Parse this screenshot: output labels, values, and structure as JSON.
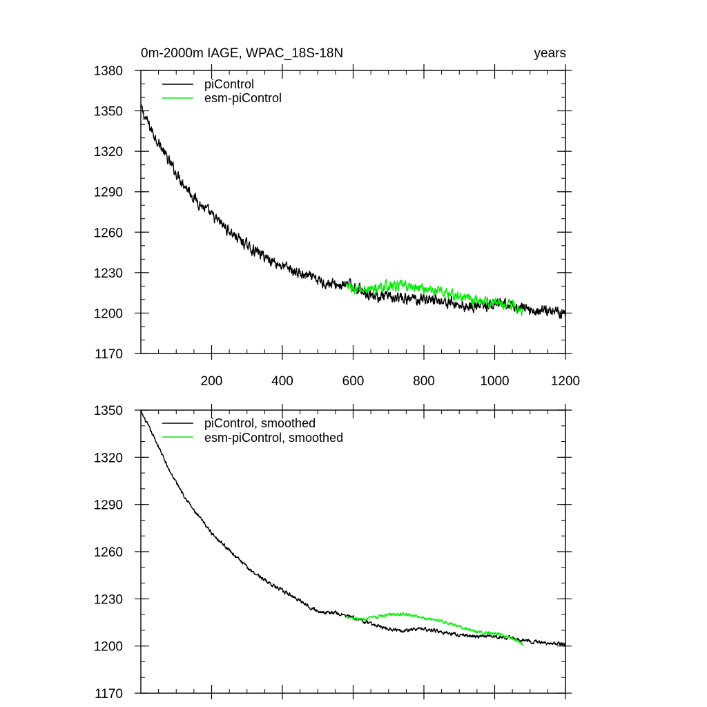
{
  "chart_data": [
    {
      "type": "line",
      "title": "0m-2000m IAGE, WPAC_18S-18N",
      "units_label": "years",
      "xlim": [
        0,
        1200
      ],
      "ylim": [
        1170,
        1380
      ],
      "xticks": [
        200,
        400,
        600,
        800,
        1000,
        1200
      ],
      "yticks": [
        1170,
        1200,
        1230,
        1260,
        1290,
        1320,
        1350,
        1380
      ],
      "x_minor_step": 50,
      "y_minor_step": 10,
      "show_x_labels": true,
      "legend_position": "top-left",
      "series": [
        {
          "name": "piControl",
          "color": "#000000",
          "x_range": [
            0,
            1200
          ],
          "noise": 3.2,
          "anchors": [
            [
              0,
              1352
            ],
            [
              25,
              1338
            ],
            [
              50,
              1327
            ],
            [
              75,
              1314
            ],
            [
              100,
              1304
            ],
            [
              150,
              1286
            ],
            [
              200,
              1272
            ],
            [
              250,
              1261
            ],
            [
              300,
              1250
            ],
            [
              350,
              1242
            ],
            [
              400,
              1235
            ],
            [
              450,
              1229
            ],
            [
              500,
              1224
            ],
            [
              550,
              1221
            ],
            [
              600,
              1220
            ],
            [
              650,
              1214
            ],
            [
              700,
              1211
            ],
            [
              750,
              1210
            ],
            [
              800,
              1211
            ],
            [
              850,
              1209
            ],
            [
              900,
              1206
            ],
            [
              950,
              1205
            ],
            [
              1000,
              1206
            ],
            [
              1050,
              1205
            ],
            [
              1100,
              1202
            ],
            [
              1150,
              1202
            ],
            [
              1200,
              1201
            ]
          ]
        },
        {
          "name": "esm-piControl",
          "color": "#00ee00",
          "x_range": [
            580,
            1080
          ],
          "noise": 3.0,
          "anchors": [
            [
              580,
              1219
            ],
            [
              620,
              1217
            ],
            [
              660,
              1218
            ],
            [
              700,
              1220
            ],
            [
              750,
              1220
            ],
            [
              800,
              1218
            ],
            [
              850,
              1216
            ],
            [
              900,
              1212
            ],
            [
              950,
              1209
            ],
            [
              1000,
              1208
            ],
            [
              1050,
              1206
            ],
            [
              1080,
              1202
            ]
          ]
        }
      ]
    },
    {
      "type": "line",
      "title": "",
      "units_label": "",
      "xlim": [
        0,
        1200
      ],
      "ylim": [
        1170,
        1350
      ],
      "xticks": [
        200,
        400,
        600,
        800,
        1000,
        1200
      ],
      "yticks": [
        1170,
        1200,
        1230,
        1260,
        1290,
        1320,
        1350
      ],
      "x_minor_step": 50,
      "y_minor_step": 10,
      "show_x_labels": false,
      "legend_position": "top-left",
      "series": [
        {
          "name": "piControl, smoothed",
          "color": "#000000",
          "x_range": [
            0,
            1200
          ],
          "noise": 0.9,
          "anchors": [
            [
              0,
              1349
            ],
            [
              25,
              1338
            ],
            [
              50,
              1327
            ],
            [
              75,
              1314
            ],
            [
              100,
              1304
            ],
            [
              150,
              1286
            ],
            [
              200,
              1272
            ],
            [
              250,
              1261
            ],
            [
              300,
              1250
            ],
            [
              350,
              1242
            ],
            [
              400,
              1235
            ],
            [
              450,
              1229
            ],
            [
              500,
              1222
            ],
            [
              550,
              1221
            ],
            [
              600,
              1218
            ],
            [
              650,
              1214
            ],
            [
              700,
              1211
            ],
            [
              750,
              1210
            ],
            [
              800,
              1211
            ],
            [
              850,
              1209
            ],
            [
              900,
              1207
            ],
            [
              950,
              1206
            ],
            [
              1000,
              1206
            ],
            [
              1050,
              1205
            ],
            [
              1100,
              1203
            ],
            [
              1150,
              1202
            ],
            [
              1200,
              1201
            ]
          ]
        },
        {
          "name": "esm-piControl, smoothed",
          "color": "#00ee00",
          "x_range": [
            580,
            1080
          ],
          "noise": 0.8,
          "anchors": [
            [
              580,
              1219
            ],
            [
              620,
              1217
            ],
            [
              660,
              1218
            ],
            [
              700,
              1220
            ],
            [
              750,
              1220
            ],
            [
              800,
              1218
            ],
            [
              850,
              1216
            ],
            [
              900,
              1212
            ],
            [
              950,
              1209
            ],
            [
              1000,
              1208
            ],
            [
              1050,
              1205
            ],
            [
              1080,
              1201
            ]
          ]
        }
      ]
    }
  ]
}
